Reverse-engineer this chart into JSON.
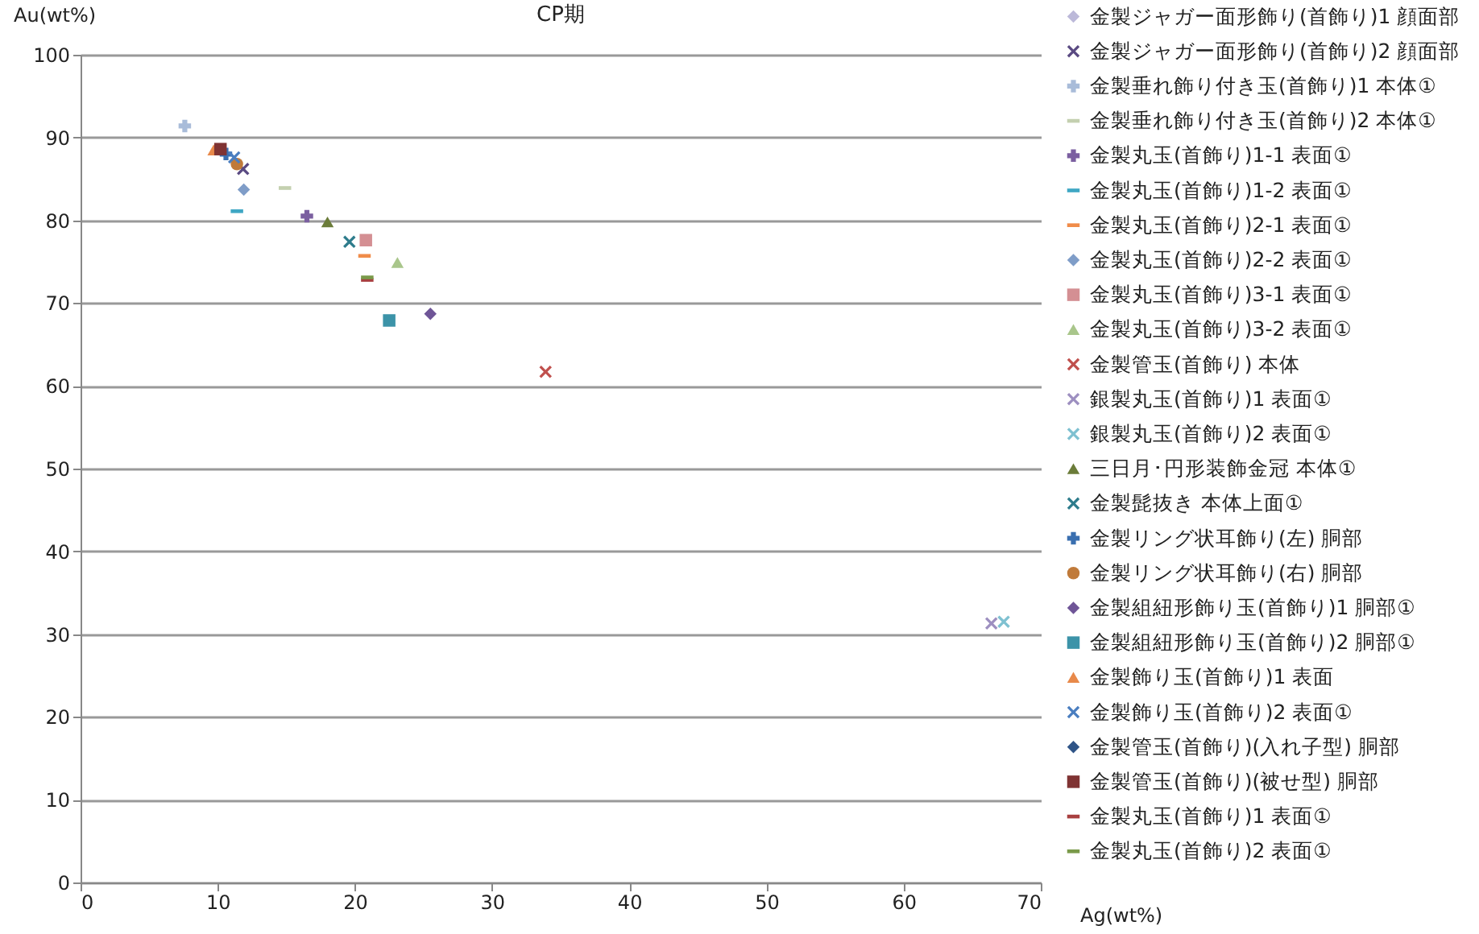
{
  "chart_data": {
    "type": "scatter",
    "title": "CP期",
    "xlabel": "Ag(wt%)",
    "ylabel": "Au(wt%)",
    "xlim": [
      0,
      70
    ],
    "xticks": [
      0,
      10,
      20,
      30,
      40,
      50,
      60,
      70
    ],
    "ylim": [
      0,
      100
    ],
    "yticks": [
      0,
      10,
      20,
      30,
      40,
      50,
      60,
      70,
      80,
      90,
      100
    ],
    "grid": "y",
    "legend": "right",
    "series": [
      {
        "name": "金製ジャガー面形飾り(首飾り)1 顔面部",
        "color": "#bcb9d9",
        "marker": "diamond",
        "x": [
          null
        ],
        "values": [
          null
        ]
      },
      {
        "name": "金製ジャガー面形飾り(首飾り)2 顔面部",
        "color": "#5a4a82",
        "marker": "x",
        "x": [
          11.85
        ],
        "values": [
          86.2
        ]
      },
      {
        "name": "金製垂れ飾り付き玉(首飾り)1 本体①",
        "color": "#a9bcd9",
        "marker": "cross",
        "x": [
          7.6
        ],
        "values": [
          91.4
        ]
      },
      {
        "name": "金製垂れ飾り付き玉(首飾り)2 本体①",
        "color": "#c4d0b0",
        "x": [
          14.9
        ],
        "values": [
          83.9
        ]
      },
      {
        "name": "金製丸玉(首飾り)1-1 表面①",
        "color": "#7b5fa0",
        "marker": "cross",
        "x": [
          16.5
        ],
        "values": [
          80.5
        ]
      },
      {
        "name": "金製丸玉(首飾り)1-2 表面①",
        "color": "#3fa7c4",
        "x": [
          11.4
        ],
        "values": [
          81.1
        ]
      },
      {
        "name": "金製丸玉(首飾り)2-1 表面①",
        "color": "#f08c4a",
        "x": [
          20.7
        ],
        "values": [
          75.7
        ]
      },
      {
        "name": "金製丸玉(首飾り)2-2 表面①",
        "color": "#7f9dc8",
        "marker": "diamond",
        "x": [
          11.9
        ],
        "values": [
          83.7
        ]
      },
      {
        "name": "金製丸玉(首飾り)3-1 表面①",
        "color": "#d48f93",
        "marker": "square",
        "x": [
          20.8
        ],
        "values": [
          77.6
        ]
      },
      {
        "name": "金製丸玉(首飾り)3-2 表面①",
        "color": "#a9c68b",
        "marker": "triangle",
        "x": [
          23.1
        ],
        "values": [
          74.9
        ]
      },
      {
        "name": "金製管玉(首飾り) 本体",
        "color": "#c0504d",
        "marker": "x",
        "x": [
          33.9
        ],
        "values": [
          61.7
        ]
      },
      {
        "name": "銀製丸玉(首飾り)1 表面①",
        "color": "#9d8fc0",
        "marker": "x",
        "x": [
          66.4
        ],
        "values": [
          31.3
        ]
      },
      {
        "name": "銀製丸玉(首飾り)2 表面①",
        "color": "#7fc1d1",
        "marker": "x",
        "x": [
          67.3
        ],
        "values": [
          31.5
        ]
      },
      {
        "name": "三日月･円形装飾金冠 本体①",
        "color": "#6b7c39",
        "marker": "triangle",
        "x": [
          18.0
        ],
        "values": [
          79.8
        ]
      },
      {
        "name": "金製髭抜き 本体上面①",
        "color": "#2e7c8c",
        "marker": "x",
        "x": [
          19.6
        ],
        "values": [
          77.4
        ]
      },
      {
        "name": "金製リング状耳飾り(左) 胴部",
        "color": "#3a6fb0",
        "marker": "cross",
        "x": [
          10.6
        ],
        "values": [
          88.0
        ]
      },
      {
        "name": "金製リング状耳飾り(右) 胴部",
        "color": "#c07a3a",
        "marker": "circle",
        "x": [
          11.4
        ],
        "values": [
          86.8
        ]
      },
      {
        "name": "金製組紐形飾り玉(首飾り)1 胴部①",
        "color": "#6f5597",
        "marker": "diamond",
        "x": [
          25.5
        ],
        "values": [
          68.7
        ]
      },
      {
        "name": "金製組紐形飾り玉(首飾り)2 胴部①",
        "color": "#3c93a8",
        "marker": "square",
        "x": [
          22.5
        ],
        "values": [
          67.9
        ]
      },
      {
        "name": "金製飾り玉(首飾り)1 表面",
        "color": "#e8894a",
        "marker": "triangle",
        "x": [
          9.7
        ],
        "values": [
          88.5
        ]
      },
      {
        "name": "金製飾り玉(首飾り)2 表面①",
        "color": "#4a7ec0",
        "marker": "x",
        "x": [
          11.2
        ],
        "values": [
          87.6
        ]
      },
      {
        "name": "金製管玉(首飾り)(入れ子型) 胴部",
        "color": "#2f5487",
        "marker": "diamond",
        "x": [
          null
        ],
        "values": [
          null
        ]
      },
      {
        "name": "金製管玉(首飾り)(被せ型) 胴部",
        "color": "#7f3333",
        "marker": "square",
        "x": [
          10.2
        ],
        "values": [
          88.6
        ]
      },
      {
        "name": "金製丸玉(首飾り)1 表面①",
        "color": "#a84040",
        "x": [
          20.9
        ],
        "values": [
          72.8
        ]
      },
      {
        "name": "金製丸玉(首飾り)2 表面①",
        "color": "#7a9a4a",
        "x": [
          20.9
        ],
        "values": [
          73.1
        ]
      }
    ]
  }
}
